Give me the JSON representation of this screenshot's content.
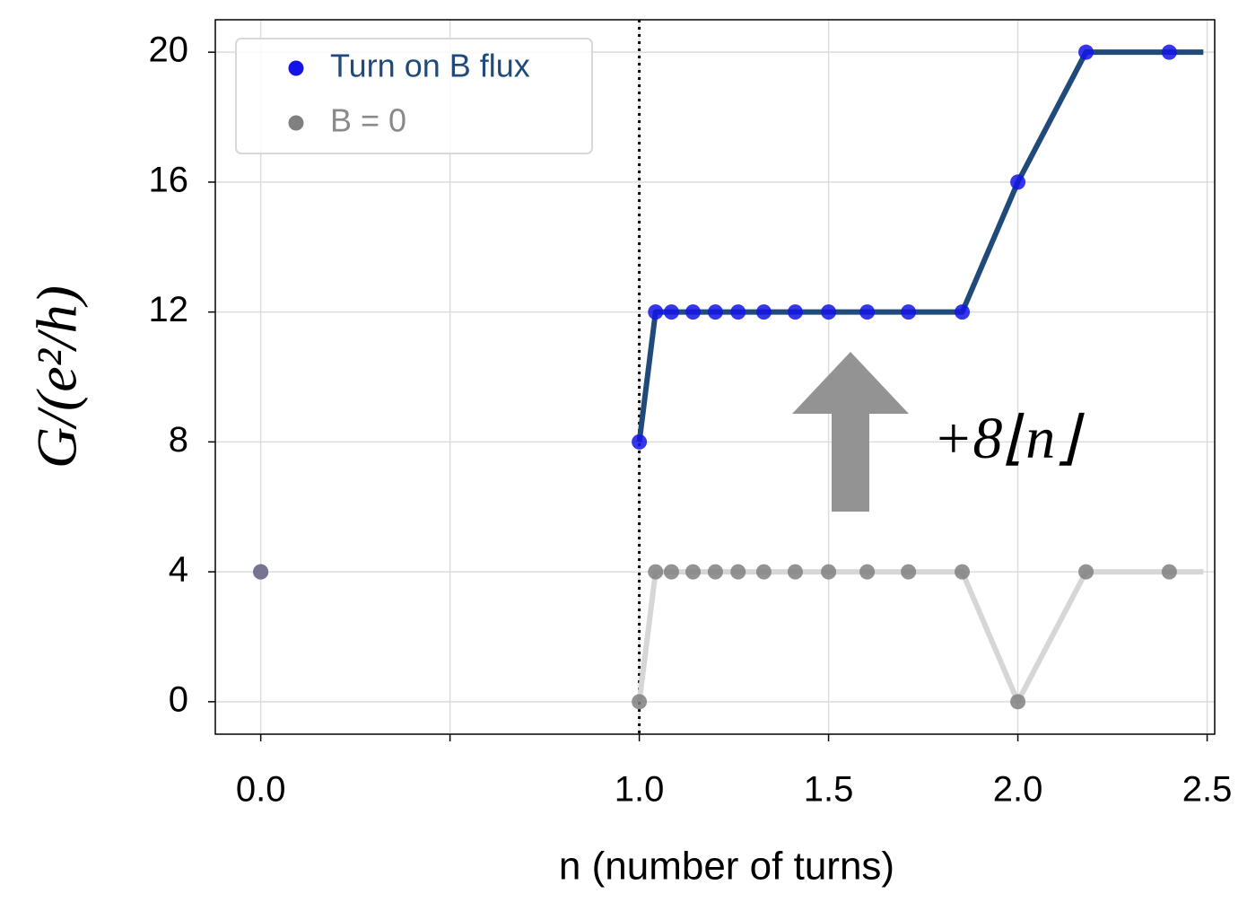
{
  "chart_data": {
    "type": "line",
    "xlabel": "n (number of turns)",
    "ylabel": "G/(e²/h)",
    "annotation": "+8⌊n⌋",
    "xlim": [
      -0.12,
      2.52
    ],
    "ylim": [
      -1,
      21
    ],
    "xticks": [
      {
        "value": 0,
        "label": "0.0"
      },
      {
        "value": 0.5,
        "label": null
      },
      {
        "value": 1,
        "label": "1.0"
      },
      1.5,
      {
        "value": 2,
        "label": "2.0"
      },
      2.5
    ],
    "yticks": [
      0,
      4,
      8,
      12,
      16,
      20
    ],
    "grid": true,
    "vline": 1,
    "legend": "upper left",
    "series": [
      {
        "name": "B = 0",
        "kind": "line",
        "color": "#d6d6d6",
        "x": [
          1.0,
          1.043,
          1.085,
          1.142,
          1.201,
          1.261,
          1.329,
          1.412,
          1.5,
          1.602,
          1.711,
          1.853,
          2.0,
          2.18,
          2.4,
          2.49
        ],
        "values": [
          0,
          4,
          4,
          4,
          4,
          4,
          4,
          4,
          4,
          4,
          4,
          4,
          0,
          4,
          4,
          4
        ]
      },
      {
        "name": "Turn on B flux",
        "kind": "line",
        "color": "#1f4a7a",
        "x": [
          1.0,
          1.043,
          1.085,
          1.142,
          1.201,
          1.261,
          1.329,
          1.412,
          1.5,
          1.602,
          1.711,
          1.853,
          2.0,
          2.18,
          2.4,
          2.49
        ],
        "values": [
          8,
          12,
          12,
          12,
          12,
          12,
          12,
          12,
          12,
          12,
          12,
          12,
          16,
          20,
          20,
          20
        ]
      },
      {
        "name": "Turn on B flux",
        "kind": "scatter",
        "color": "#1414e6",
        "legend": true,
        "x": [
          0,
          1.0,
          1.043,
          1.085,
          1.142,
          1.201,
          1.261,
          1.329,
          1.412,
          1.5,
          1.602,
          1.711,
          1.853,
          2.0,
          2.18,
          2.4
        ],
        "values": [
          4,
          8,
          12,
          12,
          12,
          12,
          12,
          12,
          12,
          12,
          12,
          12,
          12,
          16,
          20,
          20
        ]
      },
      {
        "name": "B = 0",
        "kind": "scatter",
        "color": "#808080",
        "legend": true,
        "x": [
          0,
          1.0,
          1.043,
          1.085,
          1.142,
          1.201,
          1.261,
          1.329,
          1.412,
          1.5,
          1.602,
          1.711,
          1.853,
          2.0,
          2.18,
          2.4
        ],
        "values": [
          4,
          0,
          4,
          4,
          4,
          4,
          4,
          4,
          4,
          4,
          4,
          4,
          4,
          0,
          4,
          4
        ]
      }
    ]
  }
}
